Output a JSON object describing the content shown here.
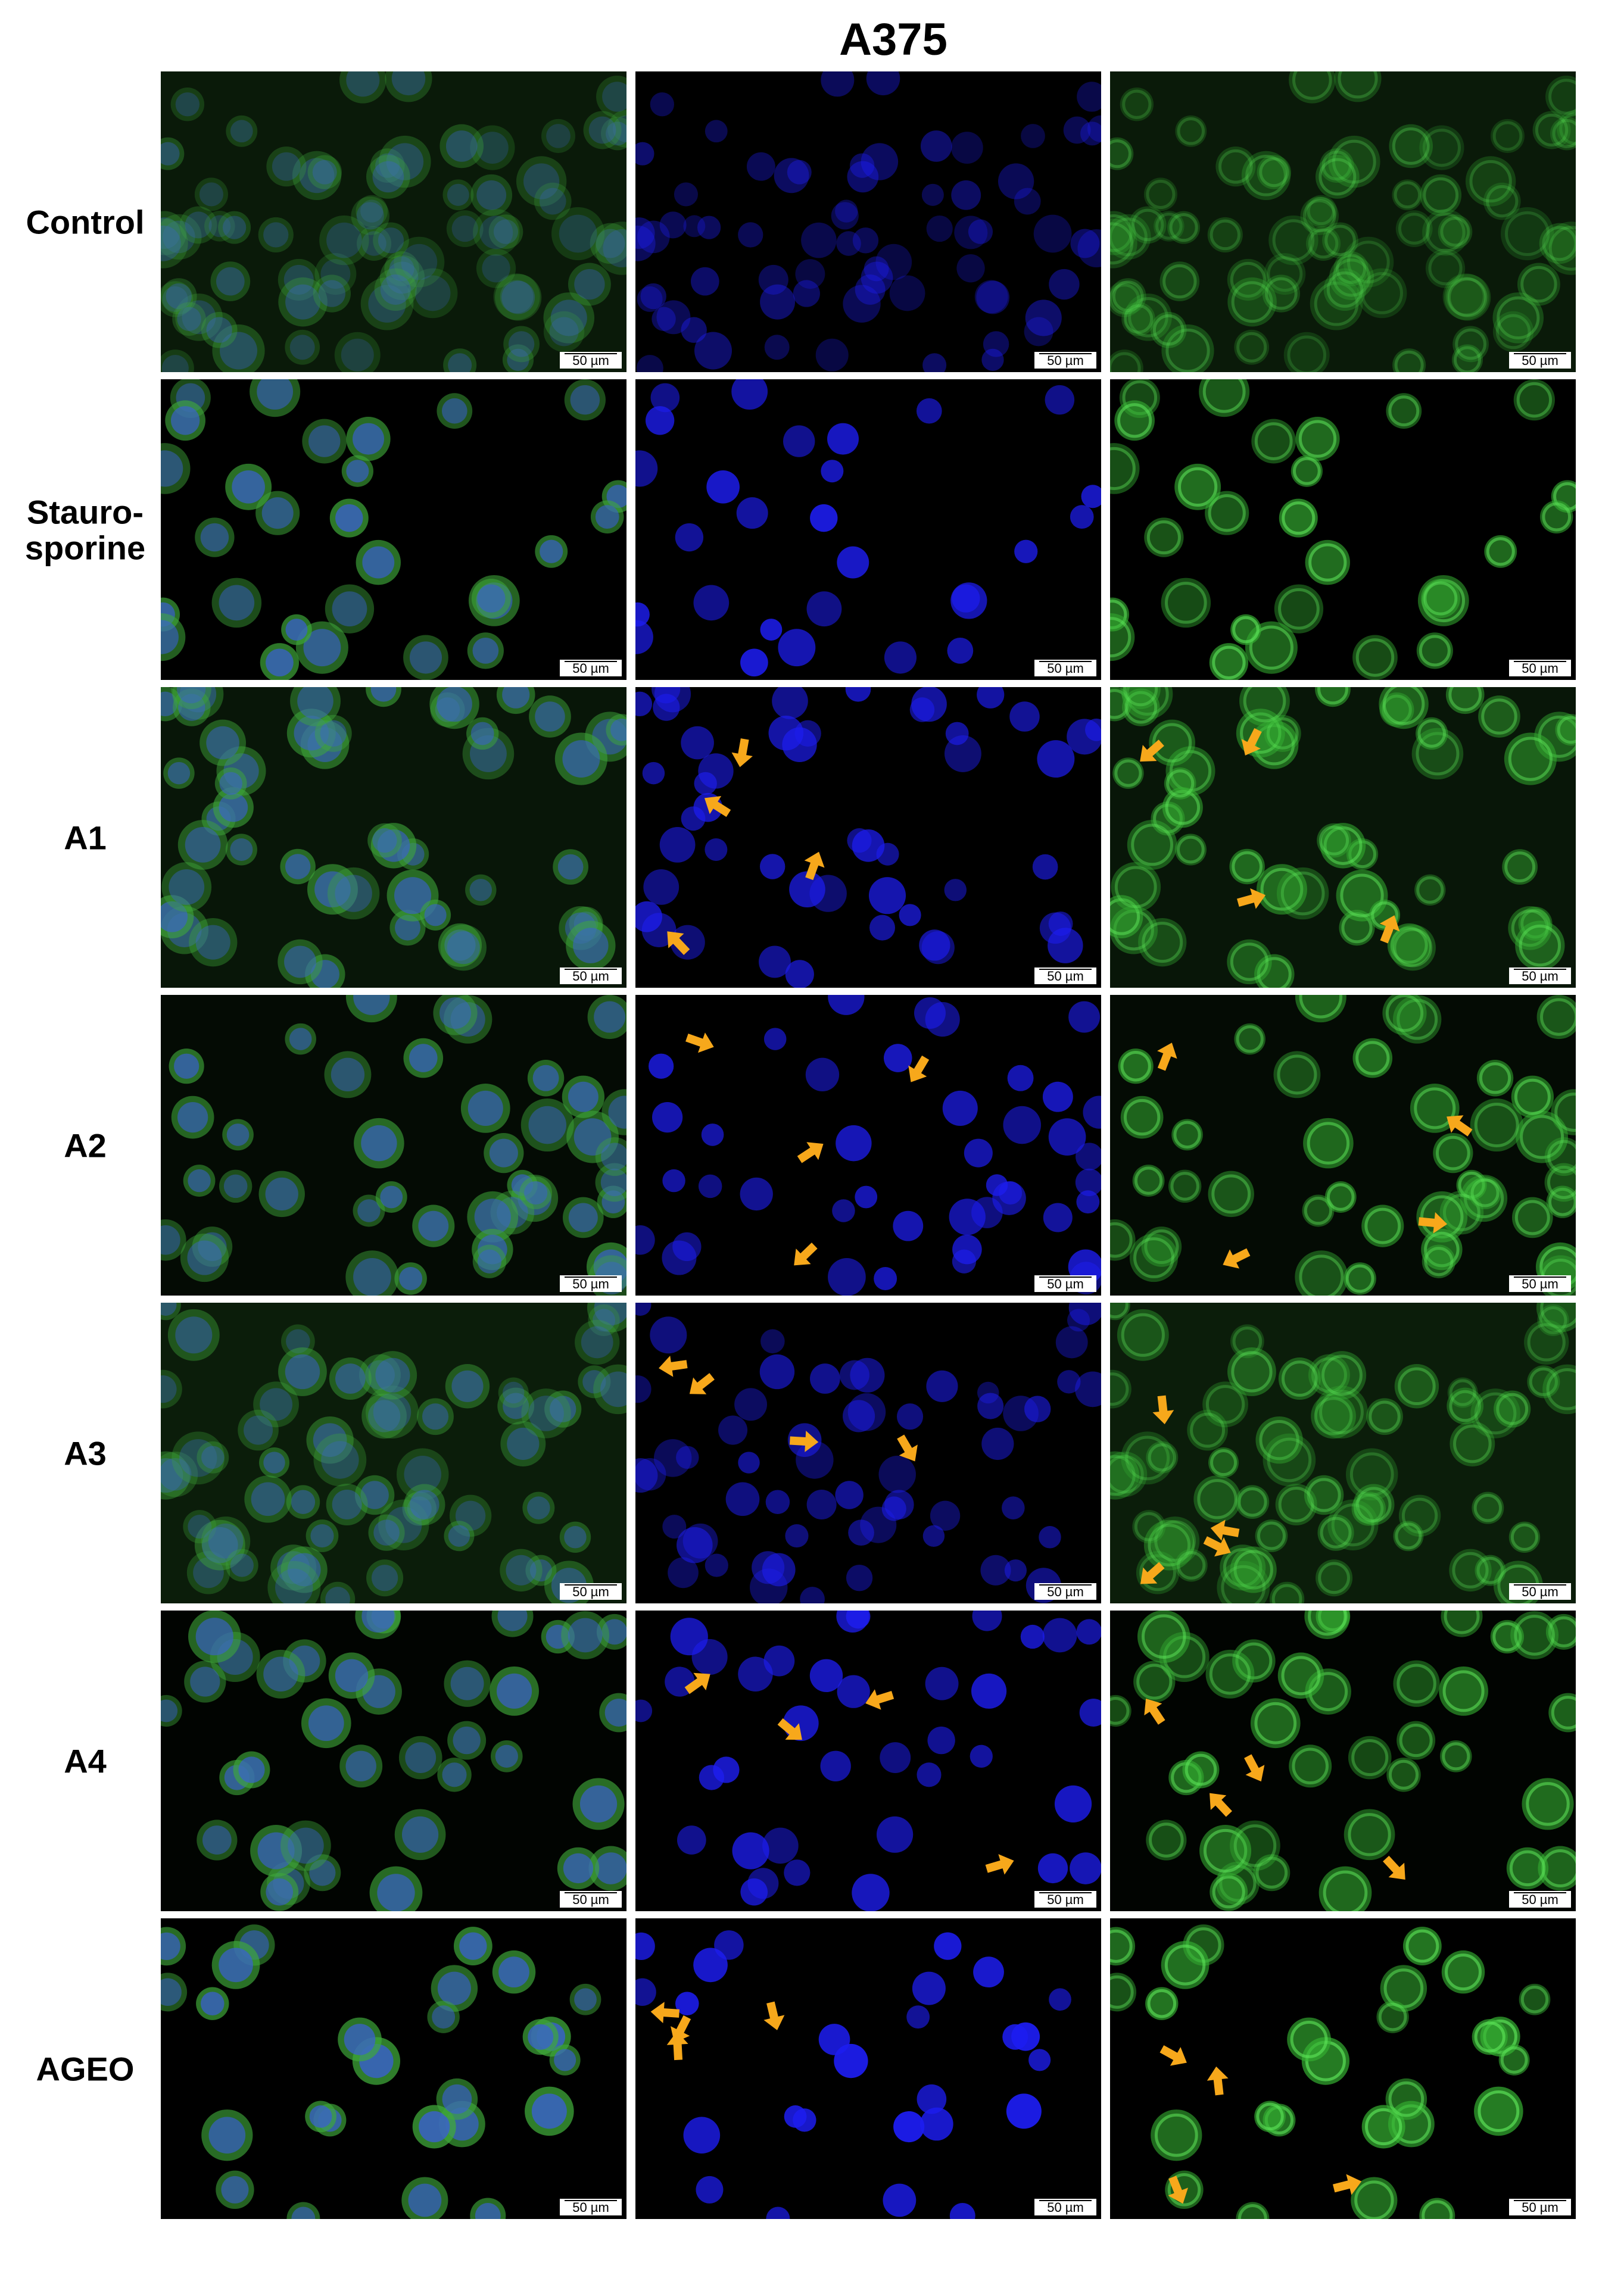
{
  "title": "A375",
  "rows": [
    {
      "label_lines": [
        "Control"
      ],
      "panels": [
        {
          "scale_bar": "50 µm"
        },
        {
          "scale_bar": "50 µm"
        },
        {
          "scale_bar": "50 µm"
        }
      ]
    },
    {
      "label_lines": [
        "Stauro-",
        "sporine"
      ],
      "panels": [
        {
          "scale_bar": "50 µm"
        },
        {
          "scale_bar": "50 µm"
        },
        {
          "scale_bar": "50 µm"
        }
      ]
    },
    {
      "label_lines": [
        "A1"
      ],
      "panels": [
        {
          "scale_bar": "50 µm"
        },
        {
          "scale_bar": "50 µm"
        },
        {
          "scale_bar": "50 µm"
        }
      ]
    },
    {
      "label_lines": [
        "A2"
      ],
      "panels": [
        {
          "scale_bar": "50 µm"
        },
        {
          "scale_bar": "50 µm"
        },
        {
          "scale_bar": "50 µm"
        }
      ]
    },
    {
      "label_lines": [
        "A3"
      ],
      "panels": [
        {
          "scale_bar": "50 µm"
        },
        {
          "scale_bar": "50 µm"
        },
        {
          "scale_bar": "50 µm"
        }
      ]
    },
    {
      "label_lines": [
        "A4"
      ],
      "panels": [
        {
          "scale_bar": "50 µm"
        },
        {
          "scale_bar": "50 µm"
        },
        {
          "scale_bar": "50 µm"
        }
      ]
    },
    {
      "label_lines": [
        "AGEO"
      ],
      "panels": [
        {
          "scale_bar": "50 µm"
        },
        {
          "scale_bar": "50 µm"
        },
        {
          "scale_bar": "50 µm"
        }
      ]
    }
  ]
}
